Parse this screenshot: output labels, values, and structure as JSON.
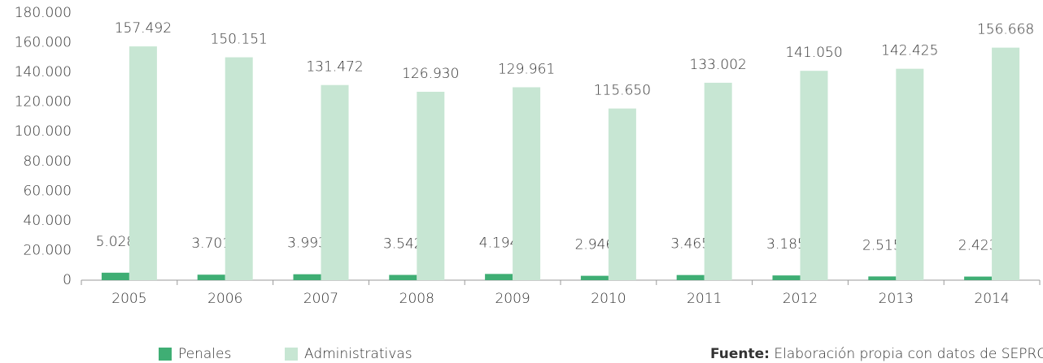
{
  "chart_data": {
    "type": "bar",
    "categories": [
      "2005",
      "2006",
      "2007",
      "2008",
      "2009",
      "2010",
      "2011",
      "2012",
      "2013",
      "2014"
    ],
    "series": [
      {
        "name": "Penales",
        "color": "#3fae74",
        "values": [
          5028,
          3701,
          3993,
          3542,
          4194,
          2946,
          3465,
          3185,
          2515,
          2423
        ],
        "value_labels": [
          "5.028",
          "3.701",
          "3.993",
          "3.542",
          "4.194",
          "2.946",
          "3.465",
          "3.185",
          "2.515",
          "2.423"
        ]
      },
      {
        "name": "Administrativas",
        "color": "#c7e6d3",
        "values": [
          157492,
          150151,
          131472,
          126930,
          129961,
          115650,
          133002,
          141050,
          142425,
          156668
        ],
        "value_labels": [
          "157.492",
          "150.151",
          "131.472",
          "126.930",
          "129.961",
          "115.650",
          "133.002",
          "141.050",
          "142.425",
          "156.668"
        ]
      }
    ],
    "ylim": [
      0,
      180000
    ],
    "yticks": [
      0,
      {
        "value": 20000,
        "label": "20.000"
      },
      {
        "value": 40000,
        "label": "40.000"
      },
      {
        "value": 60000,
        "label": "60.000"
      },
      {
        "value": 80000,
        "label": "80.000"
      },
      {
        "value": 100000,
        "label": "100.000"
      },
      {
        "value": 120000,
        "label": "120.000"
      },
      {
        "value": 140000,
        "label": "140.000"
      },
      {
        "value": 160000,
        "label": "160.000"
      },
      {
        "value": 180000,
        "label": "180.000"
      }
    ],
    "grid": false,
    "legend": "bottom-left",
    "source": {
      "label": "Fuente:",
      "text": "Elaboración propia con datos de SEPRONA."
    }
  }
}
